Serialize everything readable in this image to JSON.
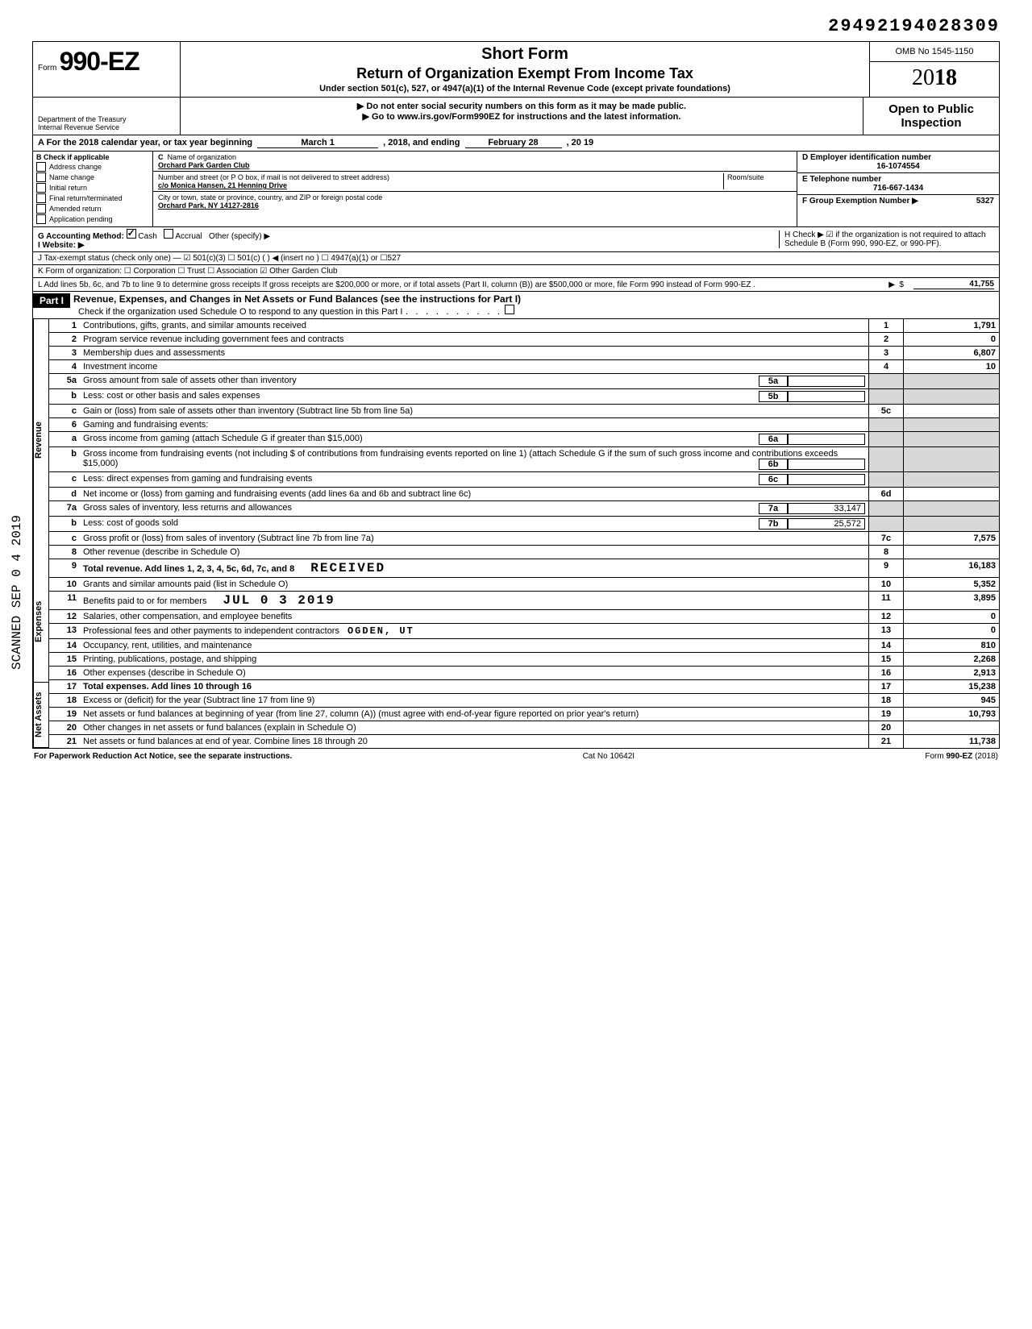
{
  "doc_number": "29492194028309",
  "form": {
    "prefix": "Form",
    "number": "990-EZ",
    "short_form": "Short Form",
    "title": "Return of Organization Exempt From Income Tax",
    "subtitle": "Under section 501(c), 527, or 4947(a)(1) of the Internal Revenue Code (except private foundations)",
    "warn": "▶ Do not enter social security numbers on this form as it may be made public.",
    "goto": "▶ Go to www.irs.gov/Form990EZ for instructions and the latest information.",
    "omb": "OMB No  1545-1150",
    "year_prefix": "20",
    "year_bold": "18",
    "dept": "Department of the Treasury\nInternal Revenue Service",
    "open": "Open to Public Inspection"
  },
  "lineA": {
    "text": "A  For the 2018 calendar year, or tax year beginning",
    "begin": "March 1",
    "mid": ", 2018, and ending",
    "end": "February 28",
    "yr": ", 20   19"
  },
  "checkB_label": "B  Check if applicable",
  "checks": [
    "Address change",
    "Name change",
    "Initial return",
    "Final return/terminated",
    "Amended return",
    "Application pending"
  ],
  "C_label": "C  Name of organization",
  "org_name": "Orchard Park Garden Club",
  "addr_label": "Number and street (or P O  box, if mail is not delivered to street address)",
  "room_label": "Room/suite",
  "addr": "c/o Monica Hansen, 21 Henning Drive",
  "city_label": "City or town, state or province, country, and ZIP or foreign postal code",
  "city": "Orchard Park, NY 14127-2816",
  "D_label": "D Employer identification number",
  "ein": "16-1074554",
  "E_label": "E Telephone number",
  "phone": "716-667-1434",
  "F_label": "F Group Exemption Number ▶",
  "group": "5327",
  "G": "G  Accounting Method:",
  "G_cash": "Cash",
  "G_accrual": "Accrual",
  "G_other": "Other (specify) ▶",
  "I": "I   Website: ▶",
  "H": "H  Check ▶ ☑ if the organization is not required to attach Schedule B (Form 990, 990-EZ, or 990-PF).",
  "J": "J  Tax-exempt status (check only one) —  ☑ 501(c)(3)   ☐ 501(c) (        ) ◀ (insert no ) ☐ 4947(a)(1) or   ☐527",
  "K": "K  Form of organization:   ☐ Corporation    ☐ Trust    ☐ Association    ☑ Other   Garden Club",
  "L": "L  Add lines 5b, 6c, and 7b to line 9 to determine gross receipts  If gross receipts are $200,000 or more, or if total assets (Part II, column (B)) are $500,000 or more, file Form 990 instead of Form 990-EZ .",
  "L_amt": "41,755",
  "part1": {
    "label": "Part I",
    "title": "Revenue, Expenses, and Changes in Net Assets or Fund Balances (see the instructions for Part I)",
    "check": "Check if the organization used Schedule O to respond to any question in this Part I"
  },
  "stamp_received": "RECEIVED",
  "stamp_date": "JUL  0 3  2019",
  "stamp_loc": "OGDEN, UT",
  "scanned_text": "SCANNED SEP 0 4 2019",
  "lines": [
    {
      "n": "1",
      "t": "Contributions, gifts, grants, and similar amounts received",
      "box": "1",
      "amt": "1,791"
    },
    {
      "n": "2",
      "t": "Program service revenue including government fees and contracts",
      "box": "2",
      "amt": "0"
    },
    {
      "n": "3",
      "t": "Membership dues and assessments",
      "box": "3",
      "amt": "6,807"
    },
    {
      "n": "4",
      "t": "Investment income",
      "box": "4",
      "amt": "10"
    },
    {
      "n": "5a",
      "t": "Gross amount from sale of assets other than inventory",
      "ibox": "5a",
      "iamt": ""
    },
    {
      "n": "b",
      "t": "Less: cost or other basis and sales expenses",
      "ibox": "5b",
      "iamt": ""
    },
    {
      "n": "c",
      "t": "Gain or (loss) from sale of assets other than inventory (Subtract line 5b from line 5a)",
      "box": "5c",
      "amt": ""
    },
    {
      "n": "6",
      "t": "Gaming and fundraising events:"
    },
    {
      "n": "a",
      "t": "Gross income from gaming (attach Schedule G if greater than $15,000)",
      "ibox": "6a",
      "iamt": ""
    },
    {
      "n": "b",
      "t": "Gross income from fundraising events (not including  $                     of contributions from fundraising events reported on line 1) (attach Schedule G if the sum of such gross income and contributions exceeds $15,000)",
      "ibox": "6b",
      "iamt": ""
    },
    {
      "n": "c",
      "t": "Less: direct expenses from gaming and fundraising events",
      "ibox": "6c",
      "iamt": ""
    },
    {
      "n": "d",
      "t": "Net income or (loss) from gaming and fundraising events (add lines 6a and 6b and subtract line 6c)",
      "box": "6d",
      "amt": ""
    },
    {
      "n": "7a",
      "t": "Gross sales of inventory, less returns and allowances",
      "ibox": "7a",
      "iamt": "33,147"
    },
    {
      "n": "b",
      "t": "Less: cost of goods sold",
      "ibox": "7b",
      "iamt": "25,572"
    },
    {
      "n": "c",
      "t": "Gross profit or (loss) from sales of inventory (Subtract line 7b from line 7a)",
      "box": "7c",
      "amt": "7,575"
    },
    {
      "n": "8",
      "t": "Other revenue (describe in Schedule O)",
      "box": "8",
      "amt": ""
    },
    {
      "n": "9",
      "t": "Total revenue. Add lines 1, 2, 3, 4, 5c, 6d, 7c, and 8",
      "box": "9",
      "amt": "16,183",
      "bold": true
    },
    {
      "n": "10",
      "t": "Grants and similar amounts paid (list in Schedule O)",
      "box": "10",
      "amt": "5,352"
    },
    {
      "n": "11",
      "t": "Benefits paid to or for members",
      "box": "11",
      "amt": "3,895"
    },
    {
      "n": "12",
      "t": "Salaries, other compensation, and employee benefits",
      "box": "12",
      "amt": "0"
    },
    {
      "n": "13",
      "t": "Professional fees and other payments to independent contractors",
      "box": "13",
      "amt": "0"
    },
    {
      "n": "14",
      "t": "Occupancy, rent, utilities, and maintenance",
      "box": "14",
      "amt": "810"
    },
    {
      "n": "15",
      "t": "Printing, publications, postage, and shipping",
      "box": "15",
      "amt": "2,268"
    },
    {
      "n": "16",
      "t": "Other expenses (describe in Schedule O)",
      "box": "16",
      "amt": "2,913"
    },
    {
      "n": "17",
      "t": "Total expenses. Add lines 10 through 16",
      "box": "17",
      "amt": "15,238",
      "bold": true
    },
    {
      "n": "18",
      "t": "Excess or (deficit) for the year (Subtract line 17 from line 9)",
      "box": "18",
      "amt": "945"
    },
    {
      "n": "19",
      "t": "Net assets or fund balances at beginning of year (from line 27, column (A)) (must agree with end-of-year figure reported on prior year's return)",
      "box": "19",
      "amt": "10,793"
    },
    {
      "n": "20",
      "t": "Other changes in net assets or fund balances (explain in Schedule O)",
      "box": "20",
      "amt": ""
    },
    {
      "n": "21",
      "t": "Net assets or fund balances at end of year. Combine lines 18 through 20",
      "box": "21",
      "amt": "11,738"
    }
  ],
  "side_labels": {
    "rev": "Revenue",
    "exp": "Expenses",
    "na": "Net Assets"
  },
  "footer": {
    "left": "For Paperwork Reduction Act Notice, see the separate instructions.",
    "mid": "Cat  No  10642I",
    "right": "Form 990-EZ (2018)"
  }
}
